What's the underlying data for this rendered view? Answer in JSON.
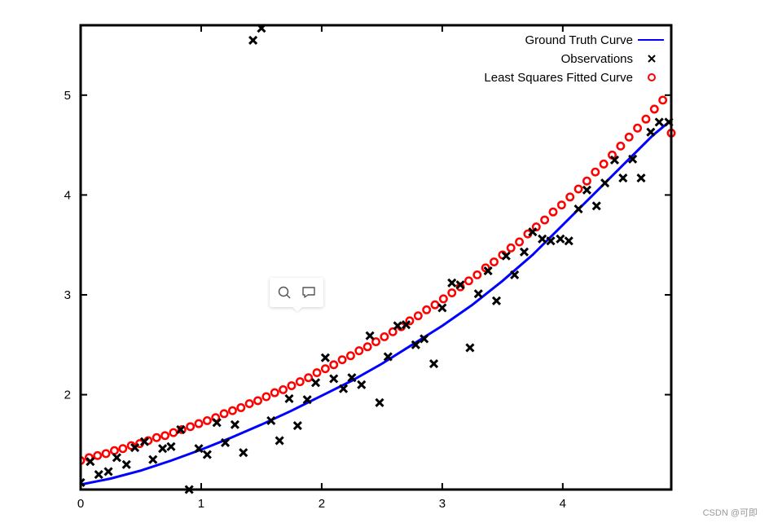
{
  "chart_data": {
    "type": "scatter",
    "title": "",
    "xlabel": "",
    "ylabel": "",
    "xlim": [
      0,
      4.9
    ],
    "ylim": [
      1.05,
      5.7
    ],
    "xticks": [
      "0",
      "1",
      "2",
      "3",
      "4"
    ],
    "yticks": [
      "2",
      "3",
      "4",
      "5"
    ],
    "grid": false,
    "legend_position": "top-right",
    "series": [
      {
        "name": "Ground Truth Curve",
        "kind": "line",
        "color": "#0000ff",
        "x": [
          0,
          0.25,
          0.5,
          0.75,
          1.0,
          1.25,
          1.5,
          1.75,
          2.0,
          2.25,
          2.5,
          2.75,
          3.0,
          3.25,
          3.5,
          3.75,
          4.0,
          4.25,
          4.5,
          4.75,
          4.9
        ],
        "y": [
          1.1,
          1.16,
          1.24,
          1.34,
          1.45,
          1.57,
          1.7,
          1.84,
          1.99,
          2.14,
          2.31,
          2.5,
          2.69,
          2.9,
          3.14,
          3.4,
          3.7,
          4.0,
          4.3,
          4.6,
          4.75
        ]
      },
      {
        "name": "Observations",
        "kind": "cross",
        "color": "#000000",
        "x": [
          0.0,
          0.08,
          0.15,
          0.23,
          0.3,
          0.38,
          0.45,
          0.53,
          0.6,
          0.68,
          0.75,
          0.83,
          0.9,
          0.98,
          1.05,
          1.13,
          1.2,
          1.28,
          1.35,
          1.43,
          1.5,
          1.58,
          1.65,
          1.73,
          1.8,
          1.88,
          1.95,
          2.03,
          2.1,
          2.18,
          2.25,
          2.33,
          2.4,
          2.48,
          2.55,
          2.63,
          2.7,
          2.78,
          2.85,
          2.93,
          3.0,
          3.08,
          3.15,
          3.23,
          3.3,
          3.38,
          3.45,
          3.53,
          3.6,
          3.68,
          3.75,
          3.83,
          3.9,
          3.98,
          4.05,
          4.13,
          4.2,
          4.28,
          4.35,
          4.43,
          4.5,
          4.58,
          4.65,
          4.73,
          4.8,
          4.88
        ],
        "y": [
          1.12,
          1.33,
          1.2,
          1.23,
          1.37,
          1.3,
          1.47,
          1.53,
          1.35,
          1.46,
          1.48,
          1.65,
          1.05,
          1.46,
          1.4,
          1.72,
          1.52,
          1.7,
          1.42,
          5.55,
          5.67,
          1.74,
          1.54,
          1.96,
          1.69,
          1.95,
          2.12,
          2.37,
          2.16,
          2.06,
          2.17,
          2.1,
          2.59,
          1.92,
          2.38,
          2.69,
          2.7,
          2.5,
          2.56,
          2.31,
          2.87,
          3.12,
          3.1,
          2.47,
          3.01,
          3.24,
          2.94,
          3.39,
          3.2,
          3.43,
          3.63,
          3.56,
          3.54,
          3.56,
          3.54,
          3.86,
          4.05,
          3.89,
          4.12,
          4.35,
          4.17,
          4.36,
          4.17,
          4.63,
          4.73,
          4.73
        ]
      },
      {
        "name": "Least Squares Fitted Curve",
        "kind": "circle",
        "color": "#ff0000",
        "x": [
          0.0,
          0.07,
          0.14,
          0.21,
          0.28,
          0.35,
          0.42,
          0.49,
          0.56,
          0.63,
          0.7,
          0.77,
          0.84,
          0.91,
          0.98,
          1.05,
          1.12,
          1.19,
          1.26,
          1.33,
          1.4,
          1.47,
          1.54,
          1.61,
          1.68,
          1.75,
          1.82,
          1.89,
          1.96,
          2.03,
          2.1,
          2.17,
          2.24,
          2.31,
          2.38,
          2.45,
          2.52,
          2.59,
          2.66,
          2.73,
          2.8,
          2.87,
          2.94,
          3.01,
          3.08,
          3.15,
          3.22,
          3.29,
          3.36,
          3.43,
          3.5,
          3.57,
          3.64,
          3.71,
          3.78,
          3.85,
          3.92,
          3.99,
          4.06,
          4.13,
          4.2,
          4.27,
          4.34,
          4.41,
          4.48,
          4.55,
          4.62,
          4.69,
          4.76,
          4.83,
          4.9
        ],
        "y": [
          1.34,
          1.37,
          1.39,
          1.41,
          1.44,
          1.46,
          1.49,
          1.51,
          1.54,
          1.57,
          1.59,
          1.62,
          1.65,
          1.68,
          1.71,
          1.74,
          1.77,
          1.81,
          1.84,
          1.87,
          1.91,
          1.94,
          1.98,
          2.02,
          2.05,
          2.09,
          2.13,
          2.17,
          2.22,
          2.26,
          2.3,
          2.35,
          2.39,
          2.44,
          2.48,
          2.53,
          2.58,
          2.63,
          2.68,
          2.74,
          2.79,
          2.85,
          2.9,
          2.96,
          3.02,
          3.08,
          3.14,
          3.2,
          3.27,
          3.33,
          3.4,
          3.47,
          3.53,
          3.61,
          3.68,
          3.75,
          3.83,
          3.9,
          3.98,
          4.06,
          4.14,
          4.23,
          4.31,
          4.4,
          4.49,
          4.58,
          4.67,
          4.76,
          4.86,
          4.95,
          4.62
        ]
      }
    ]
  },
  "popup": {
    "search_icon": "search-icon",
    "comment_icon": "comment-icon"
  },
  "watermark": "CSDN @可即"
}
